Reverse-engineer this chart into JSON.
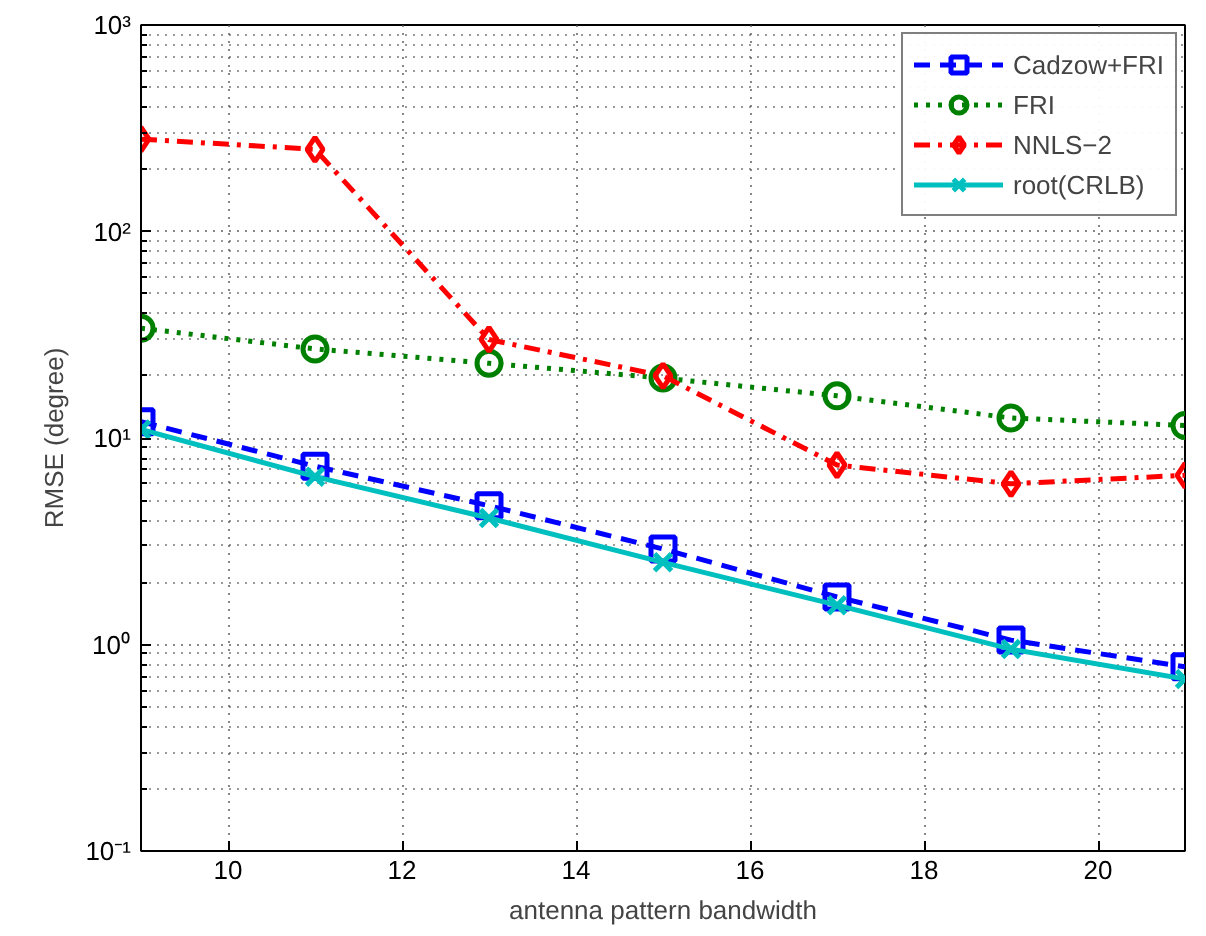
{
  "chart_data": {
    "type": "line",
    "xlabel": "antenna pattern bandwidth",
    "ylabel": "RMSE (degree)",
    "x": [
      9,
      11,
      13,
      15,
      17,
      19,
      21
    ],
    "xlim": [
      9,
      21
    ],
    "xticks": [
      10,
      12,
      14,
      16,
      18,
      20
    ],
    "ylim": [
      0.1,
      1000
    ],
    "yticks": [
      {
        "value": 0.1,
        "label": "10⁻¹"
      },
      {
        "value": 1,
        "label": "10⁰"
      },
      {
        "value": 10,
        "label": "10¹"
      },
      {
        "value": 100,
        "label": "10²"
      },
      {
        "value": 1000,
        "label": "10³"
      }
    ],
    "log": "y",
    "grid": true,
    "legend": "top right",
    "series": [
      {
        "name": "Cadzow+FRI",
        "color": "#0000ff",
        "marker": "square",
        "line_style": "dashed",
        "values": [
          12,
          7.3,
          4.7,
          2.9,
          1.7,
          1.05,
          0.78
        ]
      },
      {
        "name": "FRI",
        "color": "#008000",
        "marker": "circle",
        "line_style": "dotted",
        "values": [
          34,
          27,
          23,
          19.5,
          16,
          12.5,
          11.5
        ]
      },
      {
        "name": "NNLS−2",
        "color": "#ff0000",
        "marker": "diamond",
        "line_style": "dashdot",
        "values": [
          280,
          250,
          30,
          20,
          7.4,
          6,
          6.6
        ]
      },
      {
        "name": "root(CRLB)",
        "color": "#00bfbf",
        "marker": "x",
        "line_style": "solid",
        "values": [
          11,
          6.5,
          4.1,
          2.5,
          1.55,
          0.95,
          0.68
        ]
      }
    ]
  }
}
